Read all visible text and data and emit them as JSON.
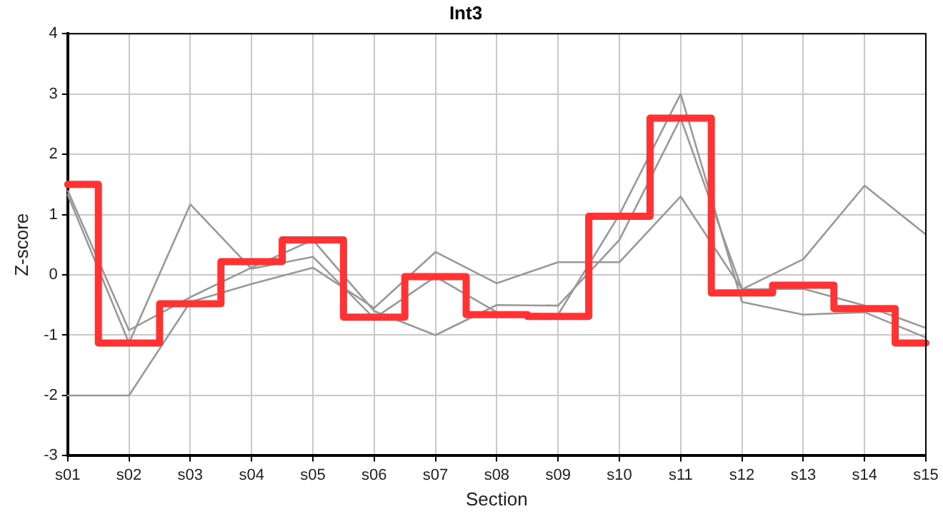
{
  "chart_data": {
    "type": "line",
    "title": "Int3",
    "xlabel": "Section",
    "ylabel": "Z-score",
    "categories": [
      "s01",
      "s02",
      "s03",
      "s04",
      "s05",
      "s06",
      "s07",
      "s08",
      "s09",
      "s10",
      "s11",
      "s12",
      "s13",
      "s14",
      "s15"
    ],
    "series": [
      {
        "type": "step",
        "color": "#ff3333",
        "values": [
          1.5,
          -1.13,
          -0.48,
          0.22,
          0.58,
          -0.7,
          -0.03,
          -0.66,
          -0.69,
          0.97,
          2.6,
          -0.3,
          -0.17,
          -0.56,
          -1.13
        ]
      },
      {
        "color": "#999999",
        "values": [
          -2,
          -2,
          -0.45,
          -0.15,
          0.12,
          -0.55,
          0.38,
          -0.14,
          0.21,
          0.21,
          1.3,
          -0.24,
          0.26,
          1.48,
          0.67
        ]
      },
      {
        "color": "#999999",
        "values": [
          1.4,
          -0.92,
          -0.37,
          0.12,
          0.58,
          -0.6,
          -1.0,
          -0.5,
          -0.51,
          0.58,
          2.6,
          -0.24,
          -0.23,
          -0.51,
          -0.88
        ]
      },
      {
        "color": "#999999",
        "values": [
          1.33,
          -1.13,
          1.17,
          0.1,
          0.3,
          -0.72,
          -0.03,
          -0.62,
          -0.66,
          1.0,
          3.0,
          -0.45,
          -0.66,
          -0.62,
          -1.04
        ]
      }
    ],
    "ylim": [
      -3,
      4
    ],
    "yticks": [
      -3,
      -2,
      -1,
      0,
      1,
      2,
      3,
      4
    ],
    "grid": true,
    "legend": false,
    "marker": "none",
    "line_style": "solid"
  }
}
